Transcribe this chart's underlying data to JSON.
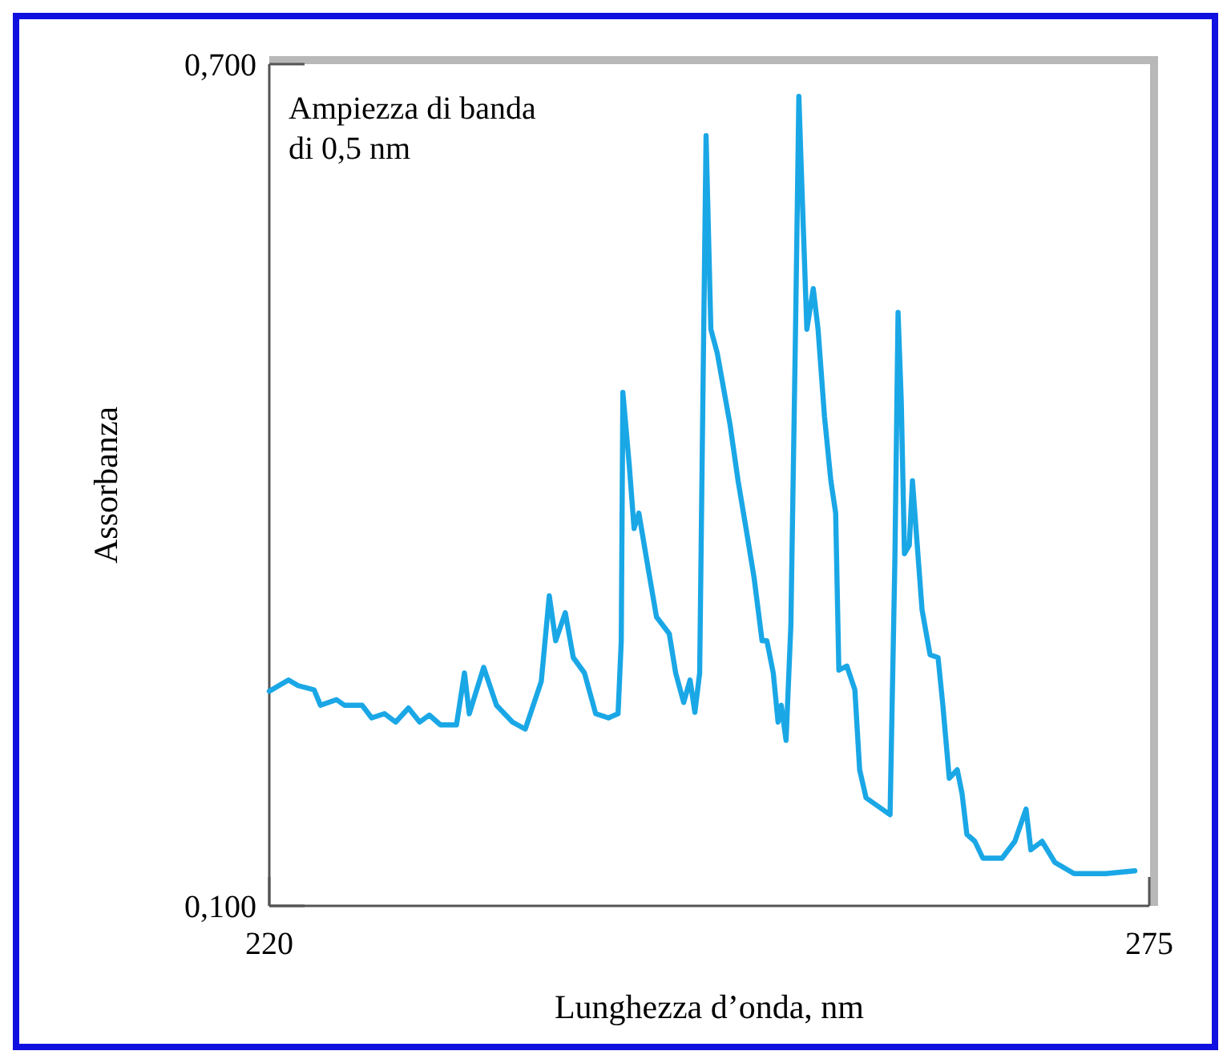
{
  "chart_data": {
    "type": "line",
    "xlabel": "Lunghezza d’onda, nm",
    "ylabel": "Assorbanza",
    "annotations": [
      "Ampiezza di banda\ndi 0,5 nm"
    ],
    "xlim": [
      220,
      275
    ],
    "xticks": [
      220,
      275
    ],
    "ylim": [
      0.1,
      0.7
    ],
    "yticks": [
      {
        "value": 0.1,
        "label": "0,100"
      },
      {
        "value": 0.7,
        "label": "0,700"
      }
    ],
    "grid": false,
    "marker": "none",
    "line_style": "solid",
    "series": [
      {
        "color": "#1aa7e6",
        "x": [
          220.0,
          221.2,
          221.8,
          222.8,
          223.2,
          224.2,
          224.7,
          225.8,
          226.4,
          227.2,
          227.9,
          228.7,
          229.4,
          230.0,
          230.7,
          231.7,
          232.2,
          232.5,
          233.4,
          234.2,
          235.2,
          236.0,
          237.0,
          237.5,
          237.9,
          238.5,
          239.0,
          239.7,
          240.4,
          241.2,
          241.8,
          242.0,
          242.1,
          242.5,
          242.8,
          243.1,
          243.6,
          244.2,
          245.0,
          245.4,
          245.9,
          246.3,
          246.6,
          246.9,
          247.1,
          247.3,
          247.6,
          248.0,
          248.8,
          249.3,
          249.8,
          250.3,
          250.8,
          251.1,
          251.5,
          251.8,
          252.0,
          252.3,
          252.6,
          252.9,
          253.1,
          253.3,
          253.6,
          254.0,
          254.3,
          254.7,
          255.1,
          255.4,
          255.6,
          256.1,
          256.6,
          256.9,
          257.3,
          258.3,
          258.8,
          259.1,
          259.3,
          259.5,
          259.7,
          260.0,
          260.2,
          260.5,
          260.8,
          261.3,
          261.8,
          262.1,
          262.5,
          263.0,
          263.3,
          263.6,
          264.1,
          264.6,
          265.8,
          266.6,
          267.3,
          267.6,
          268.3,
          269.1,
          270.3,
          272.3,
          274.1
        ],
        "values": [
          0.253,
          0.261,
          0.257,
          0.254,
          0.243,
          0.247,
          0.243,
          0.243,
          0.234,
          0.237,
          0.231,
          0.241,
          0.231,
          0.236,
          0.229,
          0.229,
          0.266,
          0.237,
          0.27,
          0.243,
          0.231,
          0.226,
          0.26,
          0.321,
          0.289,
          0.309,
          0.277,
          0.266,
          0.237,
          0.234,
          0.237,
          0.289,
          0.466,
          0.414,
          0.369,
          0.38,
          0.346,
          0.306,
          0.294,
          0.266,
          0.245,
          0.261,
          0.238,
          0.266,
          0.46,
          0.649,
          0.511,
          0.494,
          0.443,
          0.403,
          0.369,
          0.334,
          0.289,
          0.289,
          0.266,
          0.231,
          0.243,
          0.218,
          0.3,
          0.517,
          0.677,
          0.609,
          0.511,
          0.54,
          0.511,
          0.449,
          0.403,
          0.38,
          0.268,
          0.271,
          0.254,
          0.197,
          0.177,
          0.169,
          0.165,
          0.346,
          0.523,
          0.46,
          0.351,
          0.357,
          0.403,
          0.357,
          0.311,
          0.279,
          0.277,
          0.243,
          0.191,
          0.197,
          0.18,
          0.151,
          0.146,
          0.134,
          0.134,
          0.146,
          0.169,
          0.14,
          0.146,
          0.131,
          0.123,
          0.123,
          0.125
        ]
      }
    ]
  }
}
